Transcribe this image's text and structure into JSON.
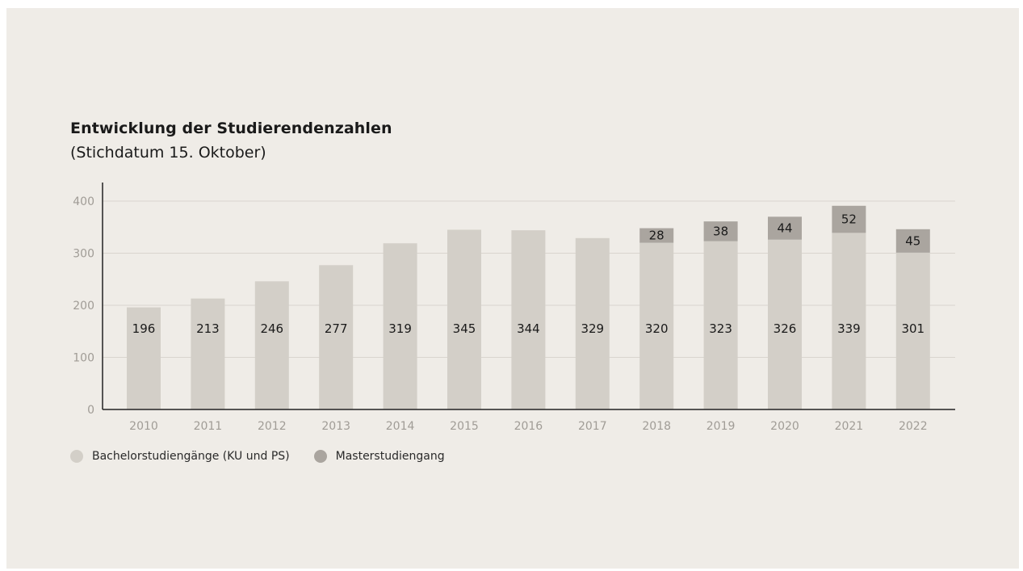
{
  "title": "Entwicklung der Studierendenzahlen",
  "subtitle": "(Stichdatum 15. Oktober)",
  "legend": [
    {
      "label": "Bachelorstudiengänge (KU und PS)",
      "color": "#d3cfc8"
    },
    {
      "label": "Masterstudiengang",
      "color": "#aaa59f"
    }
  ],
  "chart_data": {
    "type": "bar",
    "stacked": true,
    "categories": [
      "2010",
      "2011",
      "2012",
      "2013",
      "2014",
      "2015",
      "2016",
      "2017",
      "2018",
      "2019",
      "2020",
      "2021",
      "2022"
    ],
    "series": [
      {
        "name": "Bachelorstudiengänge (KU und PS)",
        "color": "#d3cfc8",
        "values": [
          196,
          213,
          246,
          277,
          319,
          345,
          344,
          329,
          320,
          323,
          326,
          339,
          301
        ]
      },
      {
        "name": "Masterstudiengang",
        "color": "#aaa59f",
        "values": [
          0,
          0,
          0,
          0,
          0,
          0,
          0,
          0,
          28,
          38,
          44,
          52,
          45
        ]
      }
    ],
    "yticks": [
      0,
      100,
      200,
      300,
      400
    ],
    "ylim": [
      0,
      400
    ],
    "grid": true,
    "legend_position": "bottom-left"
  }
}
